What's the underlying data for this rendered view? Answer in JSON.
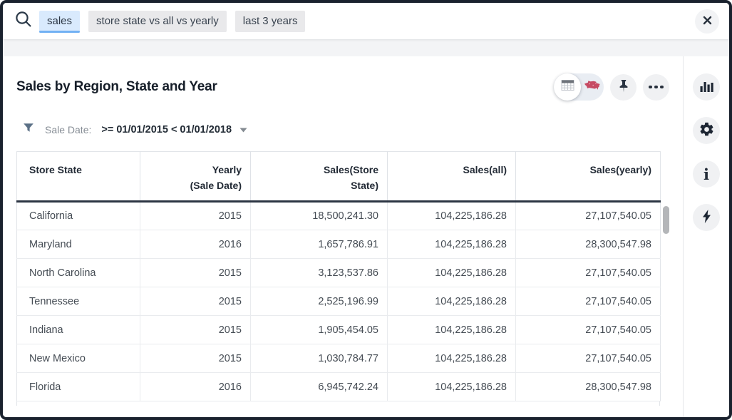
{
  "search_bar": {
    "tokens": [
      {
        "text": "sales",
        "state": "active"
      },
      {
        "text": "store state vs all vs yearly",
        "state": "default"
      },
      {
        "text": "last 3 years",
        "state": "default"
      }
    ],
    "icons": {
      "search": "magnifier-icon",
      "close": "close-x-icon"
    }
  },
  "answer": {
    "title": "Sales by Region, State and Year",
    "filter": {
      "label": "Sale Date:",
      "condition": ">= 01/01/2015 < 01/01/2018"
    }
  },
  "toolbar": {
    "view_toggle": {
      "options": [
        "table-view",
        "map-view"
      ],
      "selected": "table-view"
    },
    "icons": [
      "table-grid-icon",
      "us-map-icon",
      "pushpin-icon",
      "ellipsis-icon"
    ]
  },
  "rail": {
    "items": [
      {
        "icon": "bar-chart-icon"
      },
      {
        "icon": "gear-icon"
      },
      {
        "icon": "info-icon",
        "glyph": "i"
      },
      {
        "icon": "lightning-icon"
      }
    ]
  },
  "table": {
    "columns": [
      {
        "line1": "Store State",
        "line2": "",
        "align": "left"
      },
      {
        "line1": "Yearly",
        "line2": "(Sale Date)",
        "align": "right"
      },
      {
        "line1": "Sales(Store",
        "line2": "State)",
        "align": "right"
      },
      {
        "line1": "Sales(all)",
        "line2": "",
        "align": "right"
      },
      {
        "line1": "Sales(yearly)",
        "line2": "",
        "align": "right"
      }
    ],
    "rows": [
      [
        "California",
        "2015",
        "18,500,241.30",
        "104,225,186.28",
        "27,107,540.05"
      ],
      [
        "Maryland",
        "2016",
        "1,657,786.91",
        "104,225,186.28",
        "28,300,547.98"
      ],
      [
        "North Carolina",
        "2015",
        "3,123,537.86",
        "104,225,186.28",
        "27,107,540.05"
      ],
      [
        "Tennessee",
        "2015",
        "2,525,196.99",
        "104,225,186.28",
        "27,107,540.05"
      ],
      [
        "Indiana",
        "2015",
        "1,905,454.05",
        "104,225,186.28",
        "27,107,540.05"
      ],
      [
        "New Mexico",
        "2015",
        "1,030,784.77",
        "104,225,186.28",
        "27,107,540.05"
      ],
      [
        "Florida",
        "2016",
        "6,945,742.24",
        "104,225,186.28",
        "28,300,547.98"
      ]
    ]
  },
  "colors": {
    "accent_blue": "#72b1f3",
    "token_active_bg": "#d9eafd",
    "dark_navy": "#1d2633",
    "map_red": "#c64a63",
    "header_underline": "#2c3543"
  }
}
